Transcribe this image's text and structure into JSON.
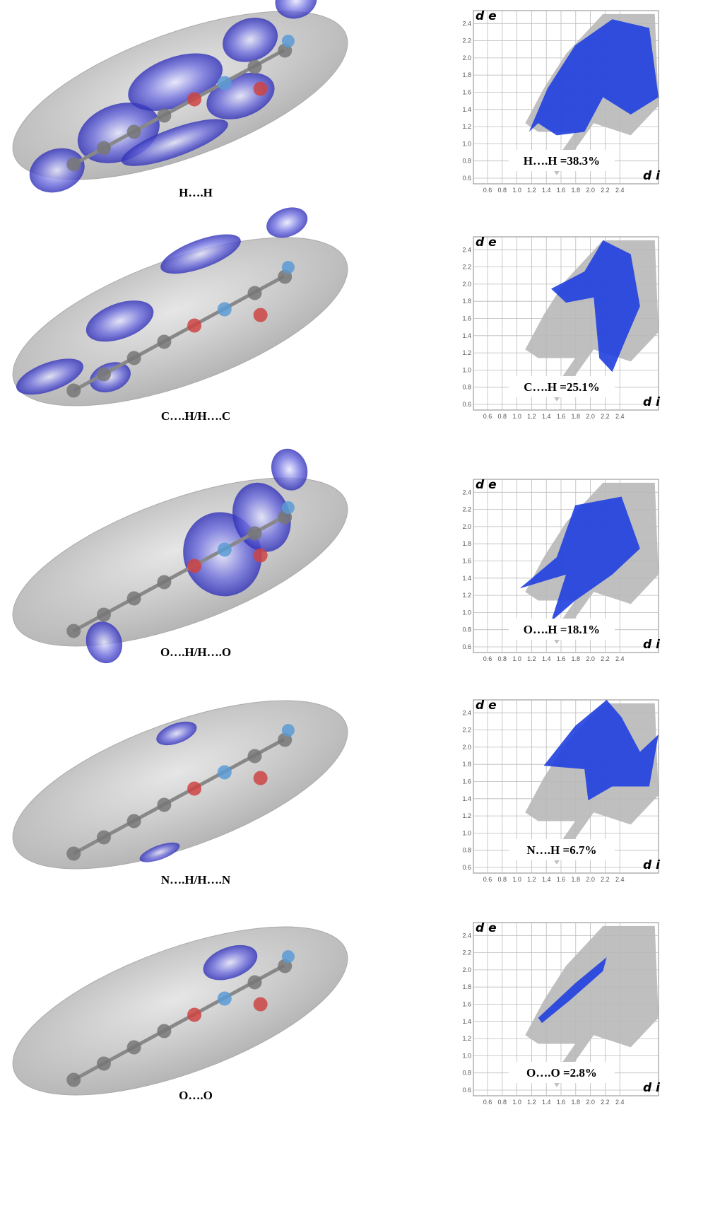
{
  "panels": [
    {
      "caption": "H….H",
      "plot_label": "H….H =38.3%"
    },
    {
      "caption": "C….H/H….C",
      "plot_label": "C….H =25.1%"
    },
    {
      "caption": "O….H/H….O",
      "plot_label": "O….H =18.1%"
    },
    {
      "caption": "N….H/H….N",
      "plot_label": "N….H =6.7%"
    },
    {
      "caption": "O….O",
      "plot_label": "O….O =2.8%"
    }
  ],
  "plot": {
    "y_label": "d e",
    "x_label": "d i",
    "ticks": [
      0.6,
      0.8,
      {
        "value": 1,
        "label": "1.0"
      },
      1.2,
      1.4,
      1.6,
      1.8,
      {
        "value": 2,
        "label": "2.0"
      },
      2.2,
      2.4
    ]
  }
}
